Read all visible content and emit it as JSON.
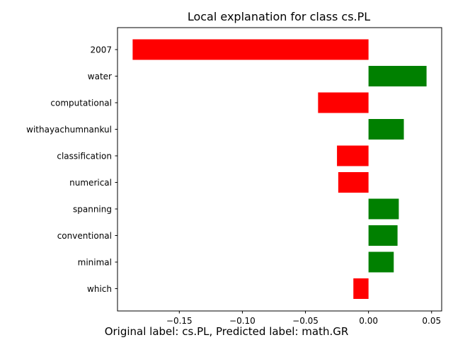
{
  "chart_data": {
    "type": "bar",
    "orientation": "horizontal",
    "title": "Local explanation for class cs.PL",
    "xlabel": "",
    "ylabel": "",
    "categories": [
      "2007",
      "water",
      "computational",
      "withayachumnankul",
      "classification",
      "numerical",
      "spanning",
      "conventional",
      "minimal",
      "which"
    ],
    "values": [
      -0.187,
      0.046,
      -0.04,
      0.028,
      -0.025,
      -0.024,
      0.024,
      0.023,
      0.02,
      -0.012
    ],
    "xlim": [
      -0.199,
      0.058
    ],
    "xticks": [
      -0.15,
      -0.1,
      -0.05,
      0.0,
      0.05
    ],
    "xtick_labels": [
      "−0.15",
      "−0.10",
      "−0.05",
      "0.00",
      "0.05"
    ],
    "grid": false,
    "colors": {
      "positive": "#008000",
      "negative": "#ff0000"
    }
  },
  "caption": "Original label: cs.PL, Predicted label: math.GR"
}
